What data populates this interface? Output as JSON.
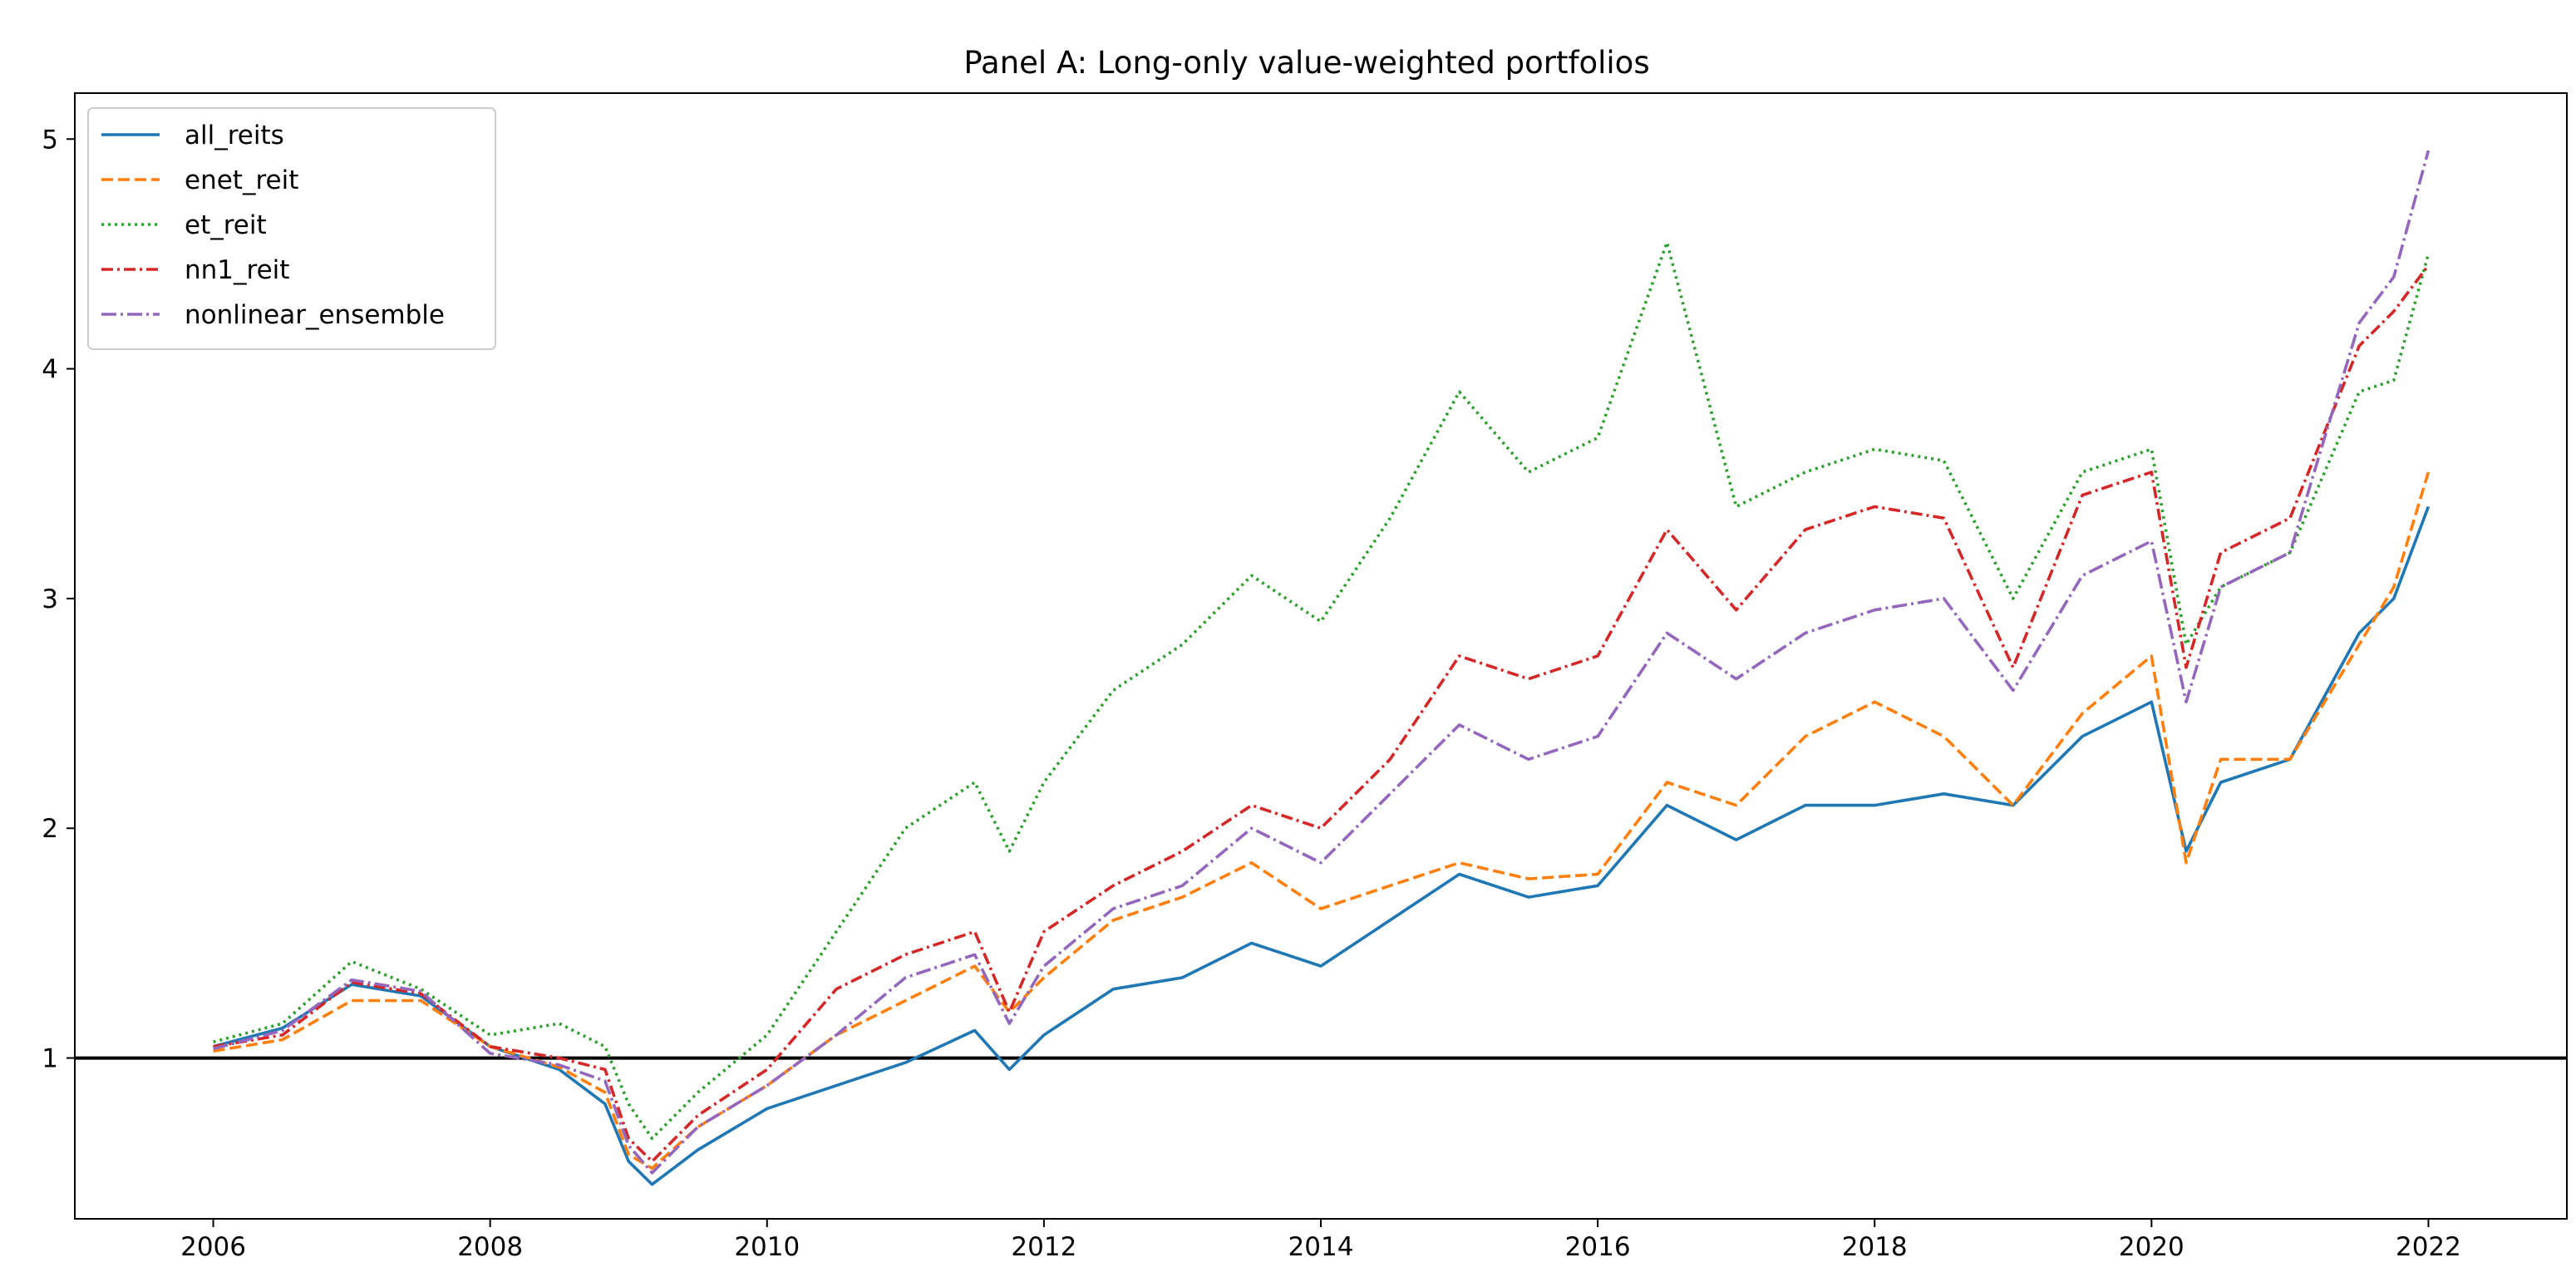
{
  "chart_data": {
    "type": "line",
    "title": "Panel A: Long-only value-weighted portfolios",
    "xlabel": "",
    "ylabel": "",
    "xlim": [
      2005.0,
      2023.0
    ],
    "ylim": [
      0.3,
      5.2
    ],
    "x_ticks": [
      2006,
      2008,
      2010,
      2012,
      2014,
      2016,
      2018,
      2020,
      2022
    ],
    "x_tick_labels": [
      "2006",
      "2008",
      "2010",
      "2012",
      "2014",
      "2016",
      "2018",
      "2020",
      "2022"
    ],
    "y_ticks": [
      1,
      2,
      3,
      4,
      5
    ],
    "y_tick_labels": [
      "1",
      "2",
      "3",
      "4",
      "5"
    ],
    "grid": false,
    "legend_position": "top-left",
    "reference_line": {
      "y": 1,
      "color": "#000000"
    },
    "x": [
      2006.0,
      2006.5,
      2007.0,
      2007.5,
      2008.0,
      2008.5,
      2008.83,
      2009.0,
      2009.17,
      2009.5,
      2010.0,
      2010.5,
      2011.0,
      2011.5,
      2011.75,
      2012.0,
      2012.5,
      2013.0,
      2013.5,
      2014.0,
      2014.5,
      2015.0,
      2015.5,
      2016.0,
      2016.5,
      2017.0,
      2017.5,
      2018.0,
      2018.5,
      2019.0,
      2019.5,
      2020.0,
      2020.25,
      2020.5,
      2021.0,
      2021.5,
      2021.75,
      2022.0
    ],
    "series": [
      {
        "name": "all_reits",
        "color": "#1f77b4",
        "dash": "solid",
        "values": [
          1.05,
          1.13,
          1.32,
          1.27,
          1.05,
          0.95,
          0.8,
          0.55,
          0.45,
          0.6,
          0.78,
          0.88,
          0.98,
          1.12,
          0.95,
          1.1,
          1.3,
          1.35,
          1.5,
          1.4,
          1.6,
          1.8,
          1.7,
          1.75,
          2.1,
          1.95,
          2.1,
          2.1,
          2.15,
          2.1,
          2.4,
          2.55,
          1.9,
          2.2,
          2.3,
          2.85,
          3.0,
          3.4
        ]
      },
      {
        "name": "enet_reit",
        "color": "#ff7f0e",
        "dash": "dashed",
        "values": [
          1.03,
          1.08,
          1.25,
          1.25,
          1.05,
          0.96,
          0.85,
          0.58,
          0.52,
          0.7,
          0.88,
          1.1,
          1.25,
          1.4,
          1.2,
          1.35,
          1.6,
          1.7,
          1.85,
          1.65,
          1.75,
          1.85,
          1.78,
          1.8,
          2.2,
          2.1,
          2.4,
          2.55,
          2.4,
          2.1,
          2.5,
          2.75,
          1.85,
          2.3,
          2.3,
          2.8,
          3.05,
          3.55
        ]
      },
      {
        "name": "et_reit",
        "color": "#2ca02c",
        "dash": "dotted",
        "values": [
          1.07,
          1.15,
          1.42,
          1.3,
          1.1,
          1.15,
          1.05,
          0.8,
          0.65,
          0.85,
          1.1,
          1.55,
          2.0,
          2.2,
          1.9,
          2.2,
          2.6,
          2.8,
          3.1,
          2.9,
          3.35,
          3.9,
          3.55,
          3.7,
          4.55,
          3.4,
          3.55,
          3.65,
          3.6,
          3.0,
          3.55,
          3.65,
          2.8,
          3.05,
          3.2,
          3.9,
          3.95,
          4.5
        ]
      },
      {
        "name": "nn1_reit",
        "color": "#d62728",
        "dash": "dashdot",
        "values": [
          1.05,
          1.1,
          1.33,
          1.28,
          1.05,
          1.0,
          0.95,
          0.65,
          0.55,
          0.75,
          0.95,
          1.3,
          1.45,
          1.55,
          1.2,
          1.55,
          1.75,
          1.9,
          2.1,
          2.0,
          2.3,
          2.75,
          2.65,
          2.75,
          3.3,
          2.95,
          3.3,
          3.4,
          3.35,
          2.7,
          3.45,
          3.55,
          2.7,
          3.2,
          3.35,
          4.1,
          4.25,
          4.45
        ]
      },
      {
        "name": "nonlinear_ensemble",
        "color": "#9467bd",
        "dash": "dashdotted",
        "values": [
          1.04,
          1.12,
          1.34,
          1.29,
          1.02,
          0.97,
          0.9,
          0.62,
          0.5,
          0.7,
          0.88,
          1.1,
          1.35,
          1.45,
          1.15,
          1.4,
          1.65,
          1.75,
          2.0,
          1.85,
          2.15,
          2.45,
          2.3,
          2.4,
          2.85,
          2.65,
          2.85,
          2.95,
          3.0,
          2.6,
          3.1,
          3.25,
          2.55,
          3.05,
          3.2,
          4.2,
          4.4,
          4.95
        ]
      }
    ]
  }
}
